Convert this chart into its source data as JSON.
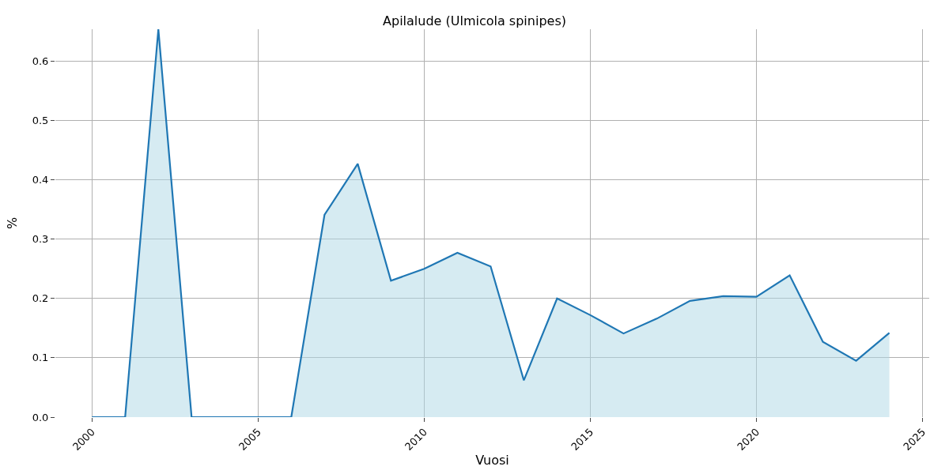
{
  "chart_data": {
    "type": "area",
    "title": "Apilalude (Ulmicola spinipes)",
    "xlabel": "Vuosi",
    "ylabel": "%",
    "x": [
      2000,
      2001,
      2002,
      2003,
      2004,
      2005,
      2006,
      2007,
      2008,
      2009,
      2010,
      2011,
      2012,
      2013,
      2014,
      2015,
      2016,
      2017,
      2018,
      2019,
      2020,
      2021,
      2022,
      2023,
      2024
    ],
    "series": [
      {
        "color": "#1f77b4",
        "values": [
          0,
          0,
          0.654,
          0,
          0,
          0,
          0,
          0.341,
          0.427,
          0.23,
          0.25,
          0.277,
          0.254,
          0.062,
          0.2,
          0.172,
          0.141,
          0.166,
          0.196,
          0.204,
          0.203,
          0.239,
          0.127,
          0.095,
          0.142
        ]
      }
    ],
    "xlim": [
      1998.9,
      2025.2
    ],
    "xticks": [
      2000,
      2005,
      2010,
      2015,
      2020,
      2025
    ],
    "ylim": [
      0,
      0.654
    ],
    "yticks": [
      {
        "value": 0,
        "label": "0.0"
      },
      0.1,
      0.2,
      0.3,
      0.4,
      0.5,
      0.6
    ],
    "grid": true
  }
}
